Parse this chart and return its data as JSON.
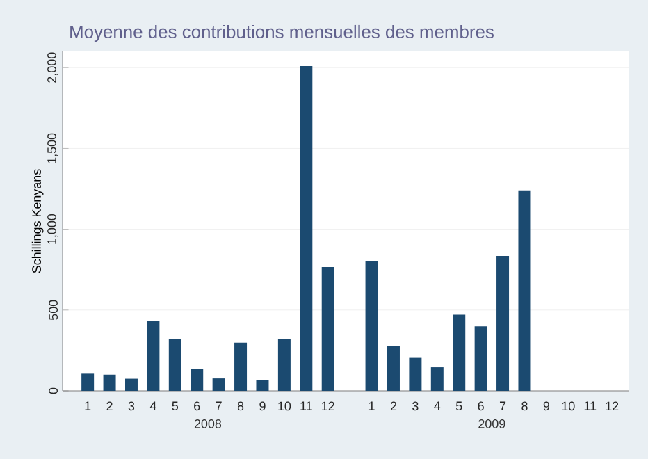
{
  "chart_data": {
    "type": "bar",
    "title": "Moyenne des contributions mensuelles des membres",
    "ylabel": "Schillings Kenyans",
    "categories": [
      "1",
      "2",
      "3",
      "4",
      "5",
      "6",
      "7",
      "8",
      "9",
      "10",
      "11",
      "12",
      null,
      "1",
      "2",
      "3",
      "4",
      "5",
      "6",
      "7",
      "8",
      "9",
      "10",
      "11",
      "12"
    ],
    "values": [
      106,
      100,
      75,
      430,
      318,
      135,
      77,
      298,
      69,
      318,
      2010,
      766,
      null,
      803,
      278,
      204,
      146,
      471,
      399,
      835,
      1240,
      null,
      null,
      null,
      null
    ],
    "color": "#1b4a70",
    "ylim": [
      0,
      2100
    ],
    "yticks": [
      0,
      500,
      {
        "value": 1000,
        "label": "1,000"
      },
      {
        "value": 1500,
        "label": "1,500"
      },
      {
        "value": 2000,
        "label": "2,000"
      }
    ],
    "grid": "y",
    "annotations": [
      "2008",
      "2009"
    ]
  }
}
